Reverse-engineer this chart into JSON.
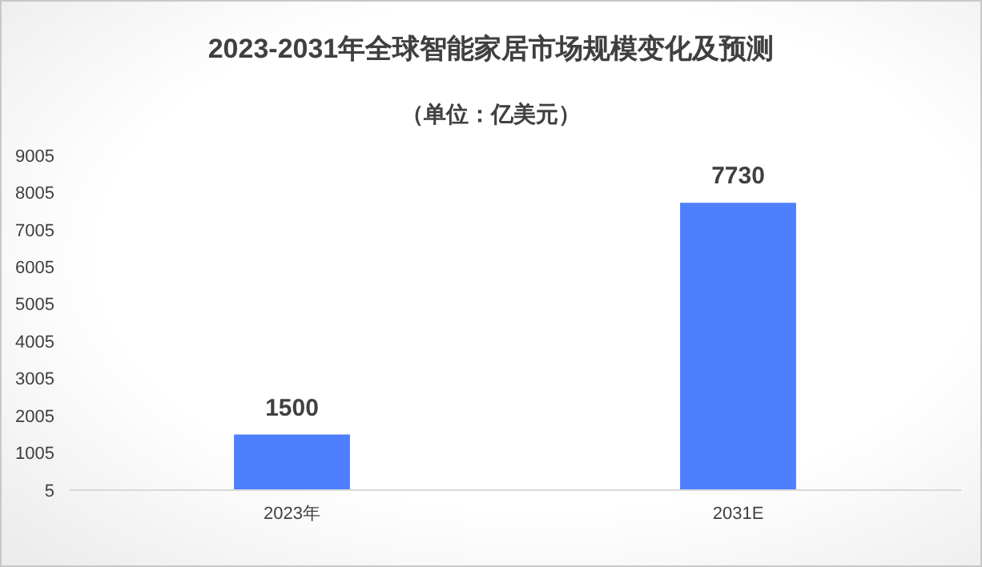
{
  "chart_data": {
    "type": "bar",
    "title": "2023-2031年全球智能家居市场规模变化及预测",
    "subtitle": "（单位：亿美元）",
    "categories": [
      "2023年",
      "2031E"
    ],
    "values": [
      1500,
      7730
    ],
    "color": "#4e7ffe",
    "ylim": [
      5,
      9005
    ],
    "yticks": [
      5,
      1005,
      2005,
      3005,
      4005,
      5005,
      6005,
      7005,
      8005,
      9005
    ],
    "grid": false,
    "data_labels": true
  }
}
